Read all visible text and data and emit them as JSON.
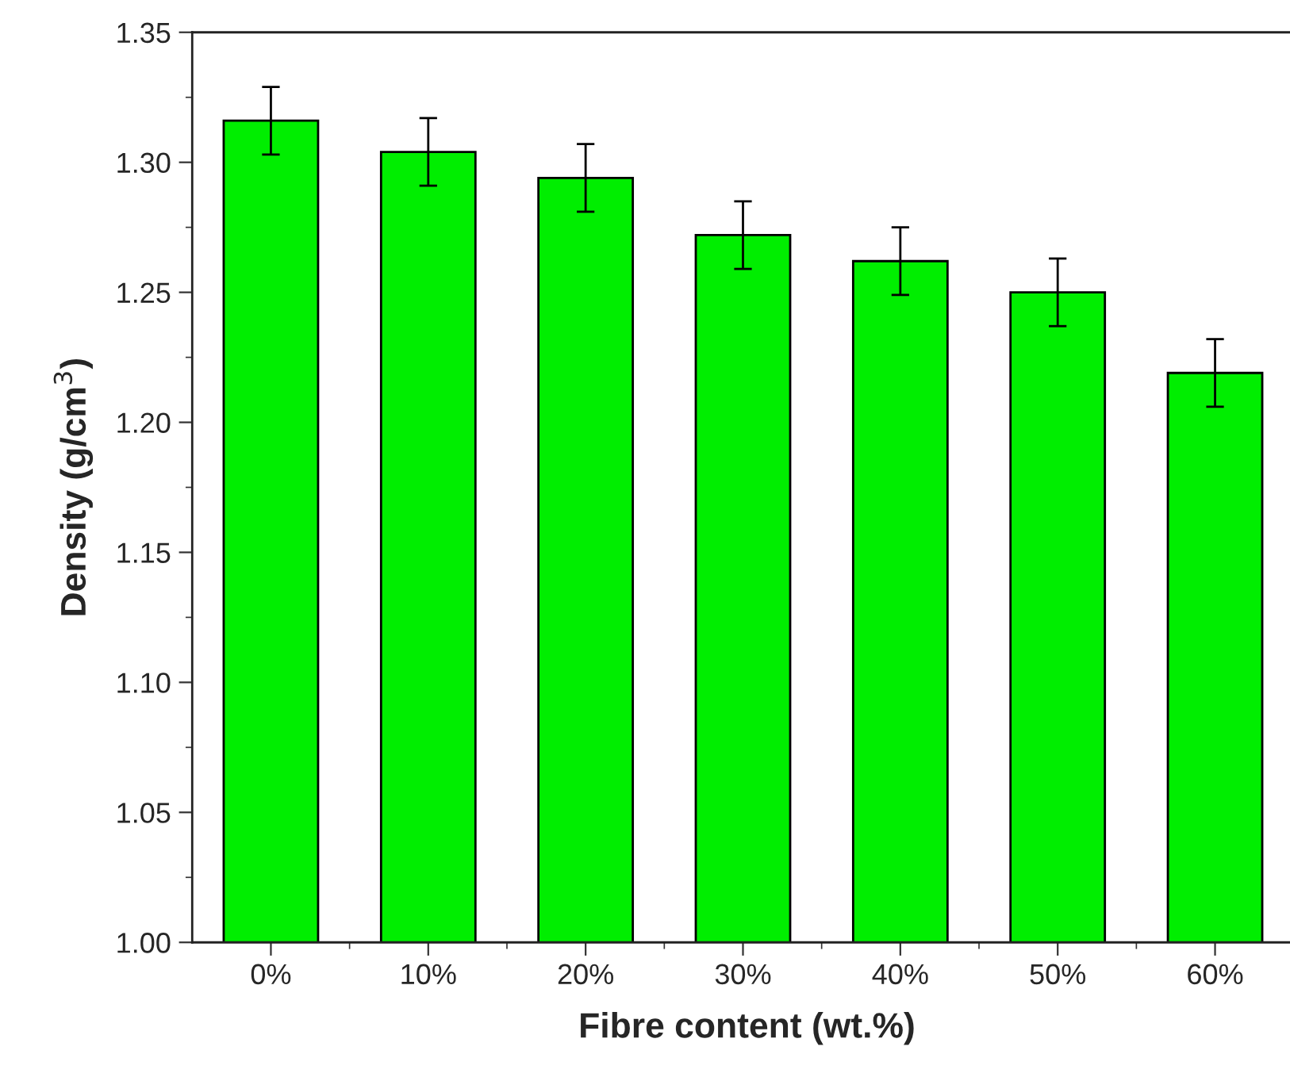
{
  "chart_data": {
    "type": "bar",
    "xlabel": "Fibre content (wt.%)",
    "ylabel": "Density (g/cm$^{3}$)",
    "categories": [
      "0%",
      "10%",
      "20%",
      "30%",
      "40%",
      "50%",
      "60%"
    ],
    "values": [
      1.316,
      1.304,
      1.294,
      1.272,
      1.262,
      1.25,
      1.219
    ],
    "errors": [
      0.013,
      0.013,
      0.013,
      0.013,
      0.013,
      0.013,
      0.013
    ],
    "color": "#00ee00",
    "ylim": [
      1.0,
      1.35
    ],
    "yticks": [
      {
        "value": 1.0,
        "label": "1.00"
      },
      {
        "value": 1.05,
        "label": "1.05"
      },
      {
        "value": 1.1,
        "label": "1.10"
      },
      {
        "value": 1.15,
        "label": "1.15"
      },
      {
        "value": 1.2,
        "label": "1.20"
      },
      {
        "value": 1.25,
        "label": "1.25"
      },
      {
        "value": 1.3,
        "label": "1.30"
      },
      {
        "value": 1.35,
        "label": "1.35"
      }
    ],
    "grid": false,
    "legend": false
  }
}
